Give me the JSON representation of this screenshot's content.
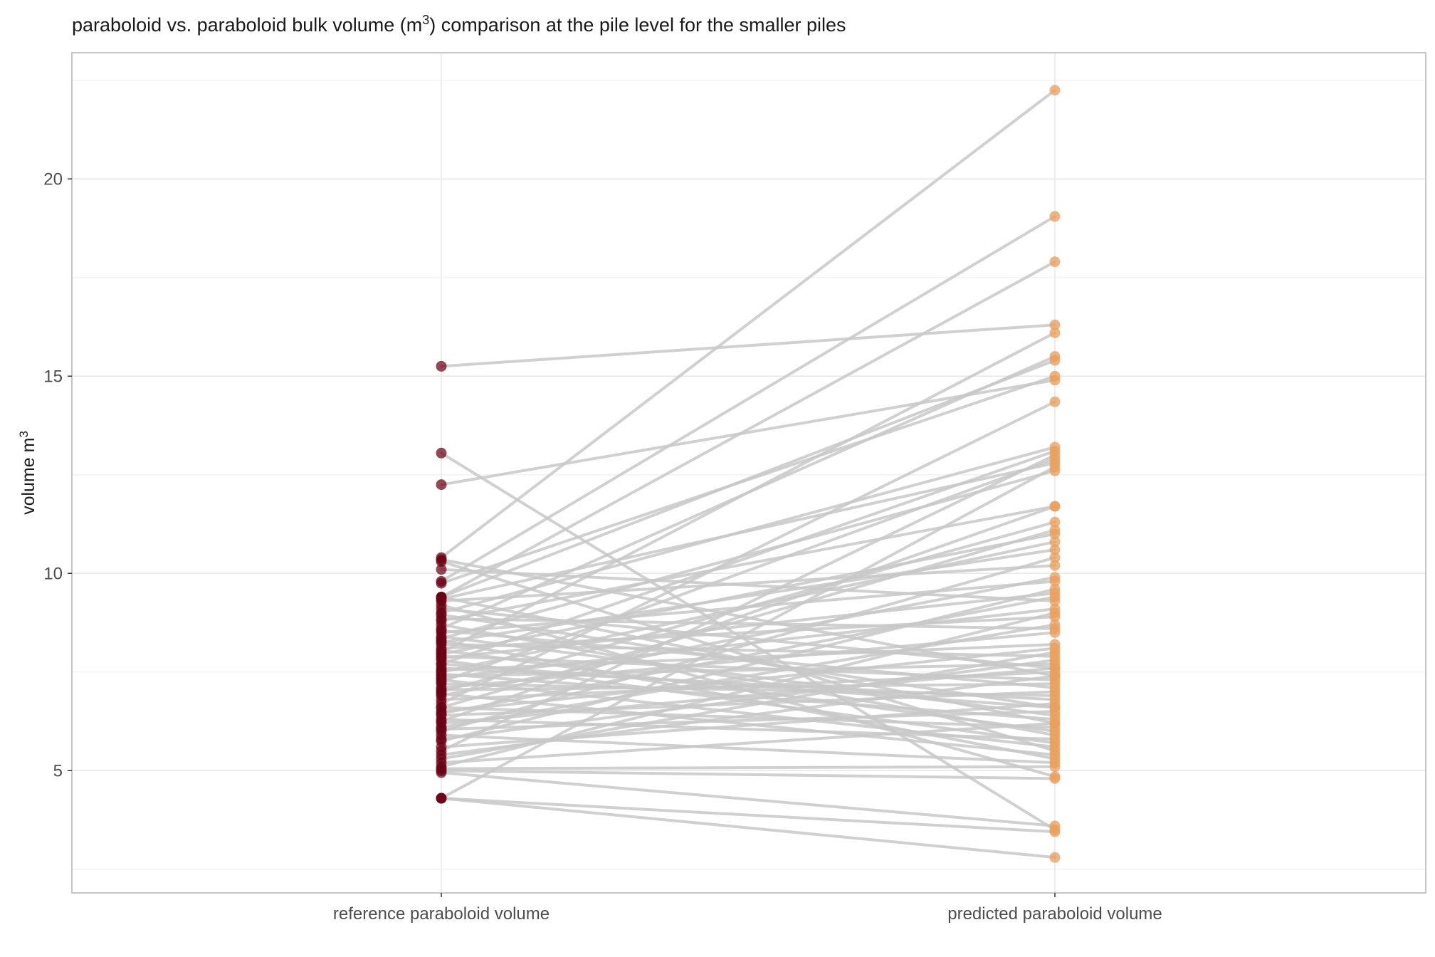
{
  "chart_data": {
    "type": "line",
    "title": {
      "before": "paraboloid vs. paraboloid bulk volume (m",
      "sup": "3",
      "after": ") comparison at the pile level for the smaller piles"
    },
    "ylabel": {
      "base": "volume m",
      "sup": "3"
    },
    "xlabel": "",
    "categories": [
      "reference paraboloid volume",
      "predicted paraboloid volume"
    ],
    "ylim": [
      1.9,
      23.2
    ],
    "yticks": [
      5,
      10,
      15,
      20
    ],
    "grid": true,
    "legend": "none",
    "colors": {
      "reference": "#6b0015",
      "predicted": "#e8a060",
      "line": "#c8c8c8",
      "panel_border": "#b3b3b3",
      "grid_major": "#e6e6e6",
      "grid_minor": "#f0f0f0"
    },
    "pairs": [
      [
        15.25,
        16.3
      ],
      [
        13.05,
        3.5
      ],
      [
        12.25,
        14.9
      ],
      [
        10.4,
        22.25
      ],
      [
        10.35,
        7.4
      ],
      [
        10.3,
        5.5
      ],
      [
        10.1,
        9.3
      ],
      [
        9.8,
        19.05
      ],
      [
        9.75,
        15.0
      ],
      [
        9.4,
        6.2
      ],
      [
        9.4,
        17.9
      ],
      [
        9.35,
        12.8
      ],
      [
        9.3,
        10.2
      ],
      [
        9.2,
        4.85
      ],
      [
        9.1,
        7.6
      ],
      [
        9.0,
        13.2
      ],
      [
        8.95,
        6.6
      ],
      [
        8.85,
        8.6
      ],
      [
        8.8,
        11.7
      ],
      [
        8.7,
        5.9
      ],
      [
        8.6,
        15.5
      ],
      [
        8.55,
        7.1
      ],
      [
        8.5,
        9.8
      ],
      [
        8.4,
        6.4
      ],
      [
        8.35,
        12.6
      ],
      [
        8.3,
        5.3
      ],
      [
        8.25,
        10.6
      ],
      [
        8.2,
        7.9
      ],
      [
        8.1,
        8.9
      ],
      [
        8.05,
        6.0
      ],
      [
        8.0,
        16.1
      ],
      [
        7.95,
        11.0
      ],
      [
        7.9,
        7.3
      ],
      [
        7.85,
        9.5
      ],
      [
        7.8,
        5.7
      ],
      [
        7.7,
        13.1
      ],
      [
        7.6,
        6.8
      ],
      [
        7.55,
        8.2
      ],
      [
        7.5,
        10.8
      ],
      [
        7.45,
        6.3
      ],
      [
        7.4,
        7.7
      ],
      [
        7.35,
        9.1
      ],
      [
        7.3,
        5.6
      ],
      [
        7.25,
        12.9
      ],
      [
        7.2,
        6.9
      ],
      [
        7.1,
        8.5
      ],
      [
        7.05,
        7.2
      ],
      [
        7.0,
        11.3
      ],
      [
        6.95,
        5.4
      ],
      [
        6.9,
        9.9
      ],
      [
        6.8,
        7.5
      ],
      [
        6.7,
        14.35
      ],
      [
        6.6,
        6.1
      ],
      [
        6.5,
        8.1
      ],
      [
        6.45,
        9.4
      ],
      [
        6.4,
        7.0
      ],
      [
        6.3,
        5.8
      ],
      [
        6.25,
        11.7
      ],
      [
        6.2,
        7.6
      ],
      [
        6.1,
        8.7
      ],
      [
        6.05,
        6.5
      ],
      [
        6.0,
        10.4
      ],
      [
        5.9,
        5.2
      ],
      [
        5.8,
        7.8
      ],
      [
        5.75,
        9.6
      ],
      [
        5.6,
        6.7
      ],
      [
        5.5,
        13.0
      ],
      [
        5.4,
        7.4
      ],
      [
        5.3,
        8.0
      ],
      [
        5.2,
        6.2
      ],
      [
        5.1,
        9.0
      ],
      [
        5.05,
        5.1
      ],
      [
        5.0,
        4.8
      ],
      [
        4.95,
        3.6
      ],
      [
        4.3,
        3.45
      ],
      [
        4.3,
        12.7
      ],
      [
        4.3,
        2.8
      ],
      [
        9.4,
        15.4
      ],
      [
        6.6,
        11.1
      ],
      [
        7.7,
        6.6
      ]
    ]
  }
}
